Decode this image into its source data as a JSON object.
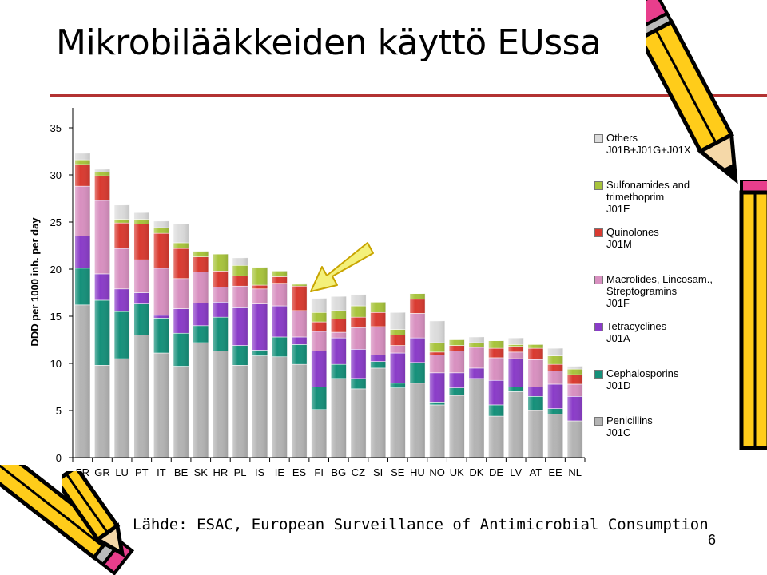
{
  "slide": {
    "title": "Mikrobilääkkeiden käyttö EUssa",
    "source": "Lähde: ESAC, European Surveillance of Antimicrobial Consumption",
    "page_number": "6"
  },
  "colors": {
    "title_rule": "#b33232",
    "arrow_fill": "#f4f07a",
    "arrow_stroke": "#c8a400"
  },
  "legend": [
    {
      "line1": "Others",
      "line2": "J01B+J01G+J01X",
      "line3": "",
      "color": "#dcdcdc"
    },
    {
      "line1": "Sulfonamides and",
      "line2": "trimethoprim",
      "line3": "J01E",
      "color": "#a8c43c"
    },
    {
      "line1": "Quinolones",
      "line2": "J01M",
      "line3": "",
      "color": "#d93a30"
    },
    {
      "line1": "Macrolides, Lincosam.,",
      "line2": "Streptogramins",
      "line3": "J01F",
      "color": "#d890c0"
    },
    {
      "line1": "Tetracyclines",
      "line2": "J01A",
      "line3": "",
      "color": "#8a3cc8"
    },
    {
      "line1": "Cephalosporins",
      "line2": "J01D",
      "line3": "",
      "color": "#15907a"
    },
    {
      "line1": "Penicillins",
      "line2": "J01C",
      "line3": "",
      "color": "#b4b4b4"
    }
  ],
  "chart_data": {
    "type": "bar",
    "stacked": true,
    "title": "",
    "xlabel": "",
    "ylabel": "DDD per 1000 inh. per day",
    "ylim": [
      0,
      35
    ],
    "yticks": [
      0,
      5,
      10,
      15,
      20,
      25,
      30,
      35
    ],
    "grid": false,
    "legend_position": "right",
    "annotation": "arrow pointing at FI",
    "categories": [
      "FR",
      "GR",
      "LU",
      "PT",
      "IT",
      "BE",
      "SK",
      "HR",
      "PL",
      "IS",
      "IE",
      "ES",
      "FI",
      "BG",
      "CZ",
      "SI",
      "SE",
      "HU",
      "NO",
      "UK",
      "DK",
      "DE",
      "LV",
      "AT",
      "EE",
      "NL"
    ],
    "series": [
      {
        "name": "Penicillins J01C",
        "color": "#b4b4b4",
        "values": [
          16.2,
          9.8,
          10.5,
          13.0,
          11.1,
          9.7,
          12.2,
          11.3,
          9.8,
          10.8,
          10.7,
          9.9,
          5.1,
          8.4,
          7.3,
          9.5,
          7.4,
          7.9,
          5.6,
          6.6,
          8.4,
          4.4,
          7.0,
          5.0,
          4.6,
          3.9
        ]
      },
      {
        "name": "Cephalosporins J01D",
        "color": "#15907a",
        "values": [
          3.9,
          6.9,
          5.0,
          3.3,
          3.7,
          3.5,
          1.8,
          3.6,
          2.1,
          0.6,
          2.1,
          2.1,
          2.4,
          1.5,
          1.1,
          0.7,
          0.5,
          2.2,
          0.3,
          0.8,
          0.0,
          1.2,
          0.5,
          1.5,
          0.6,
          0.0
        ]
      },
      {
        "name": "Tetracyclines J01A",
        "color": "#8a3cc8",
        "values": [
          3.4,
          2.8,
          2.4,
          1.2,
          0.3,
          2.6,
          2.4,
          1.6,
          4.0,
          4.9,
          3.3,
          0.8,
          3.8,
          2.8,
          3.1,
          0.7,
          3.2,
          2.6,
          3.1,
          1.6,
          1.1,
          2.6,
          3.0,
          1.0,
          2.6,
          2.6
        ]
      },
      {
        "name": "Macrolides, Lincosam., Streptogramins J01F",
        "color": "#d890c0",
        "values": [
          5.3,
          7.8,
          4.3,
          3.5,
          5.0,
          3.2,
          3.3,
          1.6,
          2.3,
          1.6,
          2.4,
          2.8,
          2.1,
          0.6,
          2.3,
          3.0,
          0.8,
          2.6,
          1.9,
          2.3,
          2.2,
          2.4,
          0.7,
          2.9,
          1.4,
          1.3
        ]
      },
      {
        "name": "Quinolones J01M",
        "color": "#d93a30",
        "values": [
          2.3,
          2.6,
          2.7,
          3.8,
          3.7,
          3.2,
          1.6,
          1.7,
          1.1,
          0.4,
          0.7,
          2.6,
          1.0,
          1.4,
          1.1,
          1.5,
          1.1,
          1.5,
          0.3,
          0.6,
          0.0,
          1.0,
          0.6,
          1.2,
          0.7,
          1.0
        ]
      },
      {
        "name": "Sulfonamides and trimethoprim J01E",
        "color": "#a8c43c",
        "values": [
          0.5,
          0.4,
          0.4,
          0.5,
          0.6,
          0.6,
          0.6,
          1.8,
          1.1,
          1.9,
          0.6,
          0.2,
          1.0,
          0.9,
          1.2,
          1.1,
          0.6,
          0.6,
          1.0,
          0.6,
          0.5,
          0.8,
          0.2,
          0.4,
          0.9,
          0.6
        ]
      },
      {
        "name": "Others J01B+J01G+J01X",
        "color": "#dcdcdc",
        "values": [
          0.7,
          0.3,
          1.5,
          0.7,
          0.7,
          2.0,
          0.0,
          0.0,
          0.8,
          0.0,
          0.0,
          0.1,
          1.5,
          1.5,
          1.2,
          0.0,
          1.8,
          0.0,
          2.3,
          0.0,
          0.6,
          0.0,
          0.7,
          0.0,
          0.8,
          0.3
        ]
      }
    ]
  }
}
